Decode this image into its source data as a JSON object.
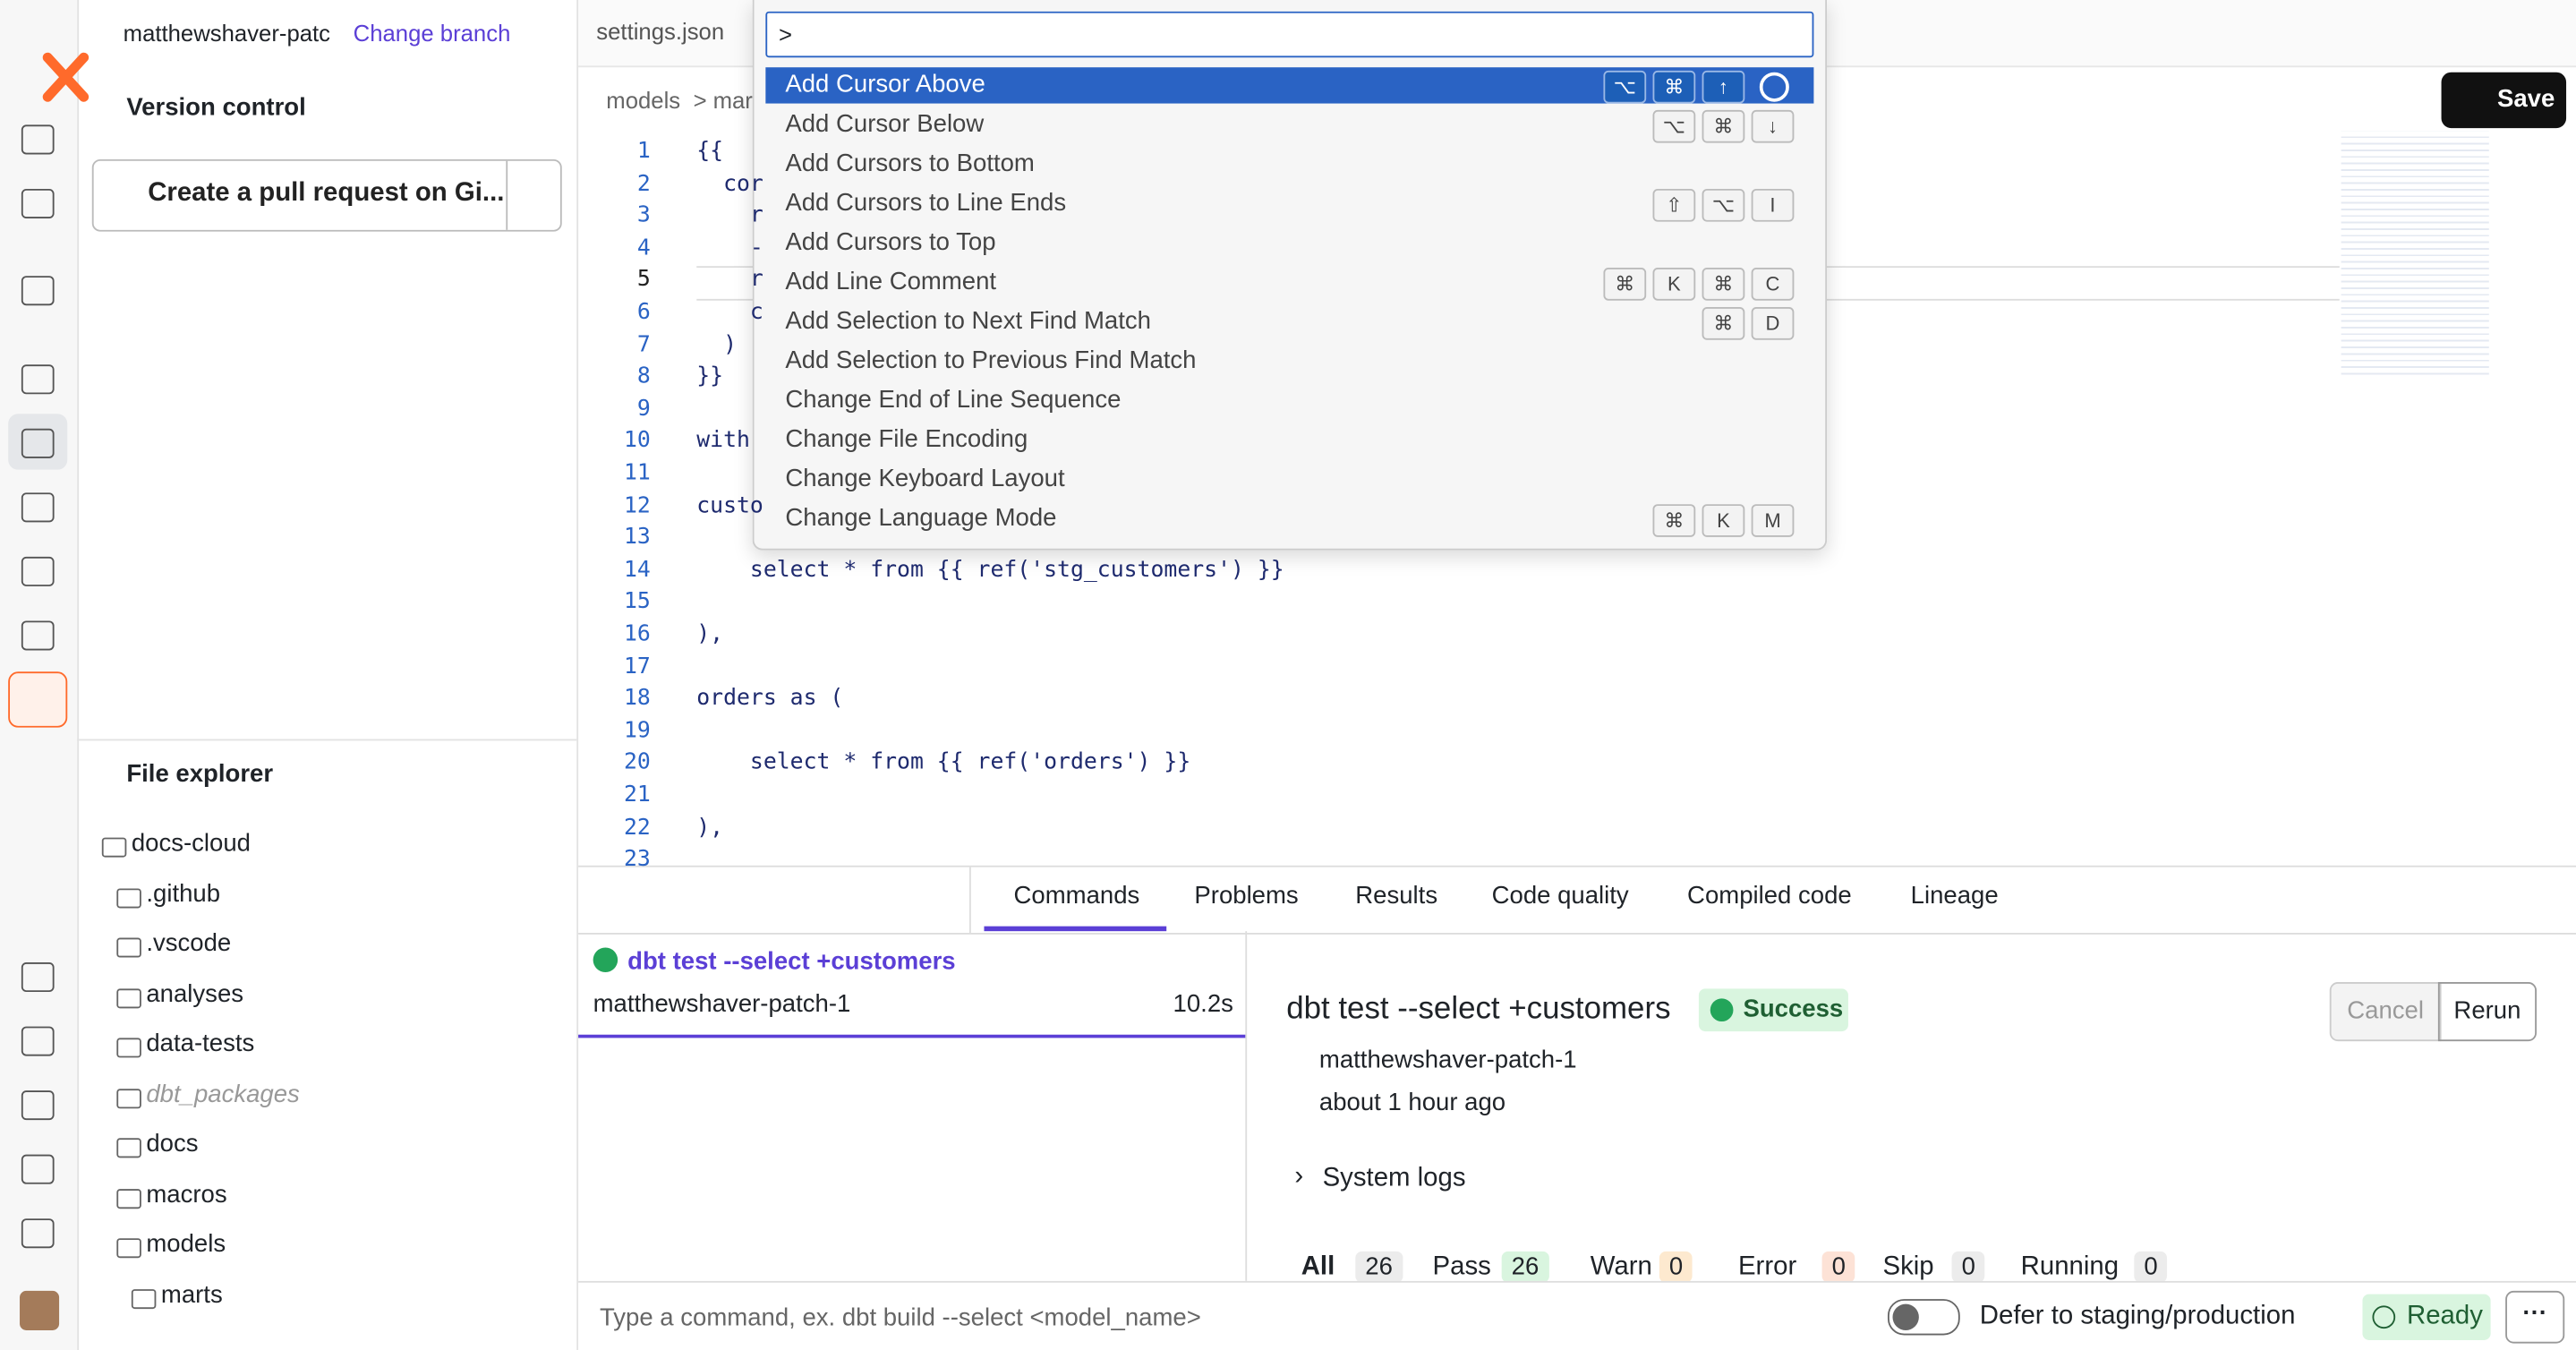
{
  "sidebar": {
    "branch": "matthewshaver-patc",
    "change_branch": "Change branch",
    "version_control": "Version control",
    "pr_button": "Create a pull request on Gi...",
    "file_explorer": "File explorer",
    "tree": [
      {
        "name": "docs-cloud",
        "children": [
          {
            "name": ".github"
          },
          {
            "name": ".vscode"
          },
          {
            "name": "analyses"
          },
          {
            "name": "data-tests"
          },
          {
            "name": "dbt_packages",
            "muted": true
          },
          {
            "name": "docs"
          },
          {
            "name": "macros"
          },
          {
            "name": "models",
            "children": [
              {
                "name": "marts"
              }
            ]
          }
        ]
      }
    ]
  },
  "editor": {
    "tab": "settings.json",
    "breadcrumb": [
      "models",
      "mar"
    ],
    "save": "Save",
    "lines": [
      {
        "n": 1,
        "text": "{{"
      },
      {
        "n": 2,
        "text": "  cor"
      },
      {
        "n": 3,
        "text": "    r"
      },
      {
        "n": 4,
        "text": "    -"
      },
      {
        "n": 5,
        "text": "    r"
      },
      {
        "n": 6,
        "text": "    c"
      },
      {
        "n": 7,
        "text": "  )"
      },
      {
        "n": 8,
        "text": "}}"
      },
      {
        "n": 9,
        "text": ""
      },
      {
        "n": 10,
        "text": "with"
      },
      {
        "n": 11,
        "text": ""
      },
      {
        "n": 12,
        "text": "custo"
      },
      {
        "n": 13,
        "text": ""
      },
      {
        "n": 14,
        "text": "    select * from {{ ref('stg_customers') }}"
      },
      {
        "n": 15,
        "text": ""
      },
      {
        "n": 16,
        "text": "),"
      },
      {
        "n": 17,
        "text": ""
      },
      {
        "n": 18,
        "text": "orders as ("
      },
      {
        "n": 19,
        "text": ""
      },
      {
        "n": 20,
        "text": "    select * from {{ ref('orders') }}"
      },
      {
        "n": 21,
        "text": ""
      },
      {
        "n": 22,
        "text": "),"
      },
      {
        "n": 23,
        "text": ""
      }
    ]
  },
  "palette": {
    "input": ">",
    "items": [
      {
        "label": "Add Cursor Above",
        "keys": [
          "⌥",
          "⌘",
          "↑"
        ]
      },
      {
        "label": "Add Cursor Below",
        "keys": [
          "⌥",
          "⌘",
          "↓"
        ]
      },
      {
        "label": "Add Cursors to Bottom",
        "keys": []
      },
      {
        "label": "Add Cursors to Line Ends",
        "keys": [
          "⇧",
          "⌥",
          "I"
        ]
      },
      {
        "label": "Add Cursors to Top",
        "keys": []
      },
      {
        "label": "Add Line Comment",
        "keys": [
          "⌘",
          "K",
          "⌘",
          "C"
        ]
      },
      {
        "label": "Add Selection to Next Find Match",
        "keys": [
          "⌘",
          "D"
        ]
      },
      {
        "label": "Add Selection to Previous Find Match",
        "keys": []
      },
      {
        "label": "Change End of Line Sequence",
        "keys": []
      },
      {
        "label": "Change File Encoding",
        "keys": []
      },
      {
        "label": "Change Keyboard Layout",
        "keys": []
      },
      {
        "label": "Change Language Mode",
        "keys": [
          "⌘",
          "K",
          "M"
        ]
      }
    ]
  },
  "panel": {
    "tabs": [
      "Commands",
      "Problems",
      "Results",
      "Code quality",
      "Compiled code",
      "Lineage"
    ],
    "run": {
      "command": "dbt test --select +customers",
      "branch": "matthewshaver-patch-1",
      "duration": "10.2s"
    },
    "detail": {
      "title": "dbt test --select +customers",
      "status": "Success",
      "cancel": "Cancel",
      "rerun": "Rerun",
      "branch": "matthewshaver-patch-1",
      "time": "about 1 hour ago",
      "system_logs": "System logs",
      "counts": [
        {
          "label": "All",
          "count": 26
        },
        {
          "label": "Pass",
          "count": 26
        },
        {
          "label": "Warn",
          "count": 0
        },
        {
          "label": "Error",
          "count": 0
        },
        {
          "label": "Skip",
          "count": 0
        },
        {
          "label": "Running",
          "count": 0
        }
      ]
    }
  },
  "footer": {
    "placeholder": "Type a command, ex. dbt build --select <model_name>",
    "defer": "Defer to staging/production",
    "status": "Ready"
  }
}
